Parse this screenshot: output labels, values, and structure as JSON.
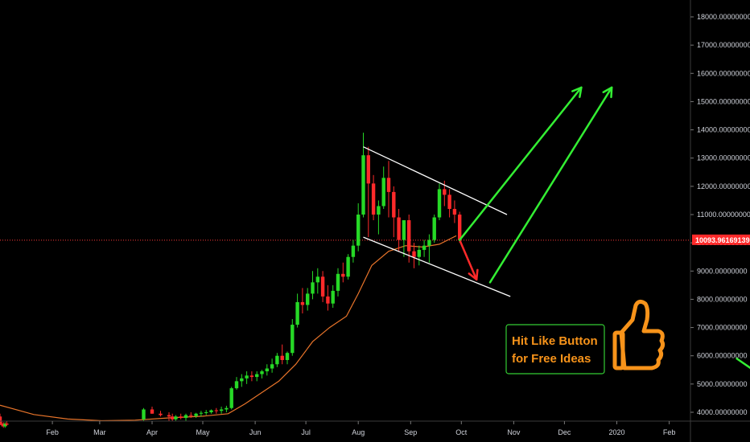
{
  "chart_data": {
    "type": "candlestick",
    "title": "",
    "xlabel": "",
    "ylabel": "",
    "ylim": [
      3800,
      18600
    ],
    "y_ticks": [
      "4000.00000000",
      "5000.00000000",
      "6000.00000000",
      "7000.00000000",
      "8000.00000000",
      "9000.00000000",
      "10000.00000000",
      "11000.00000000",
      "12000.00000000",
      "13000.00000000",
      "14000.00000000",
      "15000.00000000",
      "16000.00000000",
      "17000.00000000",
      "18000.00000000"
    ],
    "y_tick_values": [
      4000,
      5000,
      6000,
      7000,
      8000,
      9000,
      10000,
      11000,
      12000,
      13000,
      14000,
      15000,
      16000,
      17000,
      18000
    ],
    "x_ticks": [
      "Feb",
      "Mar",
      "Apr",
      "May",
      "Jun",
      "Jul",
      "Aug",
      "Sep",
      "Oct",
      "Nov",
      "Dec",
      "2020",
      "Feb"
    ],
    "x_tick_days": [
      31,
      59,
      90,
      120,
      151,
      181,
      212,
      243,
      273,
      304,
      334,
      365,
      396
    ],
    "x_range_days": [
      0,
      410
    ],
    "current_price": "10093.96169139",
    "current_price_value": 10093.96,
    "colors": {
      "up": "#26d926",
      "down": "#ff2a2a",
      "ma": "#e8742a",
      "channel": "#ffffff",
      "arrow_up": "#33ee33",
      "arrow_down": "#ff2a2a",
      "price_line": "#ff3b3b",
      "callout_border": "#33cc33",
      "callout_text": "#f7931a"
    },
    "candles": [
      [
        0,
        3850,
        3950,
        3650,
        3600
      ],
      [
        1,
        3600,
        3700,
        3500,
        3550
      ],
      [
        2,
        3550,
        3650,
        3450,
        3500
      ],
      [
        3,
        3500,
        3650,
        3450,
        3600
      ],
      [
        4,
        3600,
        3700,
        3520,
        3560
      ],
      [
        85,
        3750,
        4150,
        3700,
        4100
      ],
      [
        90,
        4100,
        4200,
        3950,
        3950
      ],
      [
        95,
        3950,
        4050,
        3850,
        3900
      ],
      [
        100,
        3900,
        4000,
        3700,
        3850
      ],
      [
        102,
        3850,
        3950,
        3700,
        3750
      ],
      [
        104,
        3750,
        3900,
        3680,
        3850
      ],
      [
        107,
        3850,
        3950,
        3750,
        3800
      ],
      [
        110,
        3800,
        3950,
        3700,
        3900
      ],
      [
        113,
        3900,
        4000,
        3800,
        3870
      ],
      [
        116,
        3870,
        3980,
        3800,
        3950
      ],
      [
        119,
        3950,
        4050,
        3850,
        3980
      ],
      [
        122,
        3980,
        4080,
        3900,
        4000
      ],
      [
        125,
        4000,
        4100,
        3950,
        4070
      ],
      [
        128,
        4070,
        4150,
        3950,
        4050
      ],
      [
        131,
        4050,
        4200,
        3950,
        4100
      ],
      [
        134,
        4100,
        4230,
        4000,
        4150
      ],
      [
        137,
        4150,
        4900,
        4100,
        4850
      ],
      [
        140,
        4850,
        5250,
        4800,
        5100
      ],
      [
        143,
        5100,
        5350,
        4900,
        5200
      ],
      [
        146,
        5200,
        5450,
        5000,
        5300
      ],
      [
        149,
        5300,
        5450,
        5100,
        5250
      ],
      [
        152,
        5250,
        5450,
        5100,
        5350
      ],
      [
        155,
        5350,
        5500,
        5200,
        5450
      ],
      [
        158,
        5450,
        5700,
        5300,
        5550
      ],
      [
        161,
        5550,
        5900,
        5400,
        5700
      ],
      [
        164,
        5700,
        6100,
        5600,
        6000
      ],
      [
        167,
        6000,
        6400,
        5700,
        5850
      ],
      [
        170,
        5850,
        6150,
        5700,
        6100
      ],
      [
        173,
        6100,
        7300,
        6000,
        7100
      ],
      [
        176,
        7100,
        8200,
        7000,
        7900
      ],
      [
        179,
        7900,
        8400,
        7500,
        7800
      ],
      [
        182,
        7800,
        8400,
        7600,
        8200
      ],
      [
        185,
        8200,
        9000,
        8000,
        8600
      ],
      [
        188,
        8600,
        9100,
        8200,
        8800
      ],
      [
        191,
        8800,
        9000,
        7900,
        8100
      ],
      [
        194,
        8100,
        8500,
        7600,
        7850
      ],
      [
        197,
        7850,
        8500,
        7700,
        8300
      ],
      [
        200,
        8300,
        9100,
        8100,
        8900
      ],
      [
        203,
        8900,
        9300,
        8600,
        8800
      ],
      [
        206,
        8800,
        9600,
        8700,
        9500
      ],
      [
        209,
        9500,
        10100,
        9300,
        9900
      ],
      [
        212,
        9900,
        11400,
        9700,
        11000
      ],
      [
        215,
        11000,
        13900,
        10900,
        13100
      ],
      [
        218,
        13100,
        13400,
        10200,
        12100
      ],
      [
        221,
        12100,
        12400,
        10800,
        11000
      ],
      [
        224,
        11000,
        11500,
        10300,
        11300
      ],
      [
        227,
        11300,
        12700,
        11200,
        12300
      ],
      [
        230,
        12300,
        12900,
        10900,
        11800
      ],
      [
        233,
        11800,
        12000,
        10200,
        10900
      ],
      [
        236,
        10900,
        11200,
        9700,
        10100
      ],
      [
        239,
        10100,
        10800,
        9500,
        10800
      ],
      [
        242,
        10800,
        11000,
        9300,
        9700
      ],
      [
        245,
        9700,
        10000,
        9100,
        9500
      ],
      [
        248,
        9500,
        9900,
        9200,
        9750
      ],
      [
        251,
        9750,
        10100,
        9500,
        9900
      ],
      [
        254,
        9900,
        10300,
        9300,
        10100
      ],
      [
        257,
        10100,
        11000,
        10000,
        10900
      ],
      [
        260,
        10900,
        12100,
        10800,
        11900
      ],
      [
        263,
        11900,
        12200,
        11300,
        11700
      ],
      [
        266,
        11700,
        11900,
        10900,
        11200
      ],
      [
        269,
        11200,
        11500,
        10700,
        11000
      ],
      [
        272,
        11000,
        11100,
        10000,
        10100
      ]
    ],
    "ma_points": [
      [
        0,
        4250
      ],
      [
        20,
        3920
      ],
      [
        40,
        3760
      ],
      [
        60,
        3700
      ],
      [
        80,
        3720
      ],
      [
        100,
        3800
      ],
      [
        120,
        3860
      ],
      [
        135,
        3950
      ],
      [
        145,
        4300
      ],
      [
        155,
        4700
      ],
      [
        165,
        5100
      ],
      [
        175,
        5700
      ],
      [
        185,
        6500
      ],
      [
        195,
        7000
      ],
      [
        205,
        7400
      ],
      [
        212,
        8200
      ],
      [
        220,
        9200
      ],
      [
        230,
        9700
      ],
      [
        240,
        9900
      ],
      [
        250,
        9850
      ],
      [
        260,
        9950
      ],
      [
        270,
        10250
      ]
    ],
    "channel_lines": [
      [
        [
          215,
          13400
        ],
        [
          300,
          11000
        ]
      ],
      [
        [
          215,
          10200
        ],
        [
          302,
          8100
        ]
      ]
    ],
    "arrows": [
      {
        "color": "arrow_down",
        "from": [
          272,
          10100
        ],
        "to": [
          282,
          8700
        ]
      },
      {
        "color": "arrow_up",
        "from": [
          272,
          10100
        ],
        "to": [
          344,
          15500
        ]
      },
      {
        "color": "arrow_up",
        "from": [
          290,
          8600
        ],
        "to": [
          362,
          15500
        ]
      },
      {
        "color": "arrow_up",
        "from": [
          436,
          5900
        ],
        "to": [
          482,
          4000
        ]
      }
    ],
    "callout": {
      "line1": "Hit Like Button",
      "line2": "for Free Ideas"
    }
  }
}
